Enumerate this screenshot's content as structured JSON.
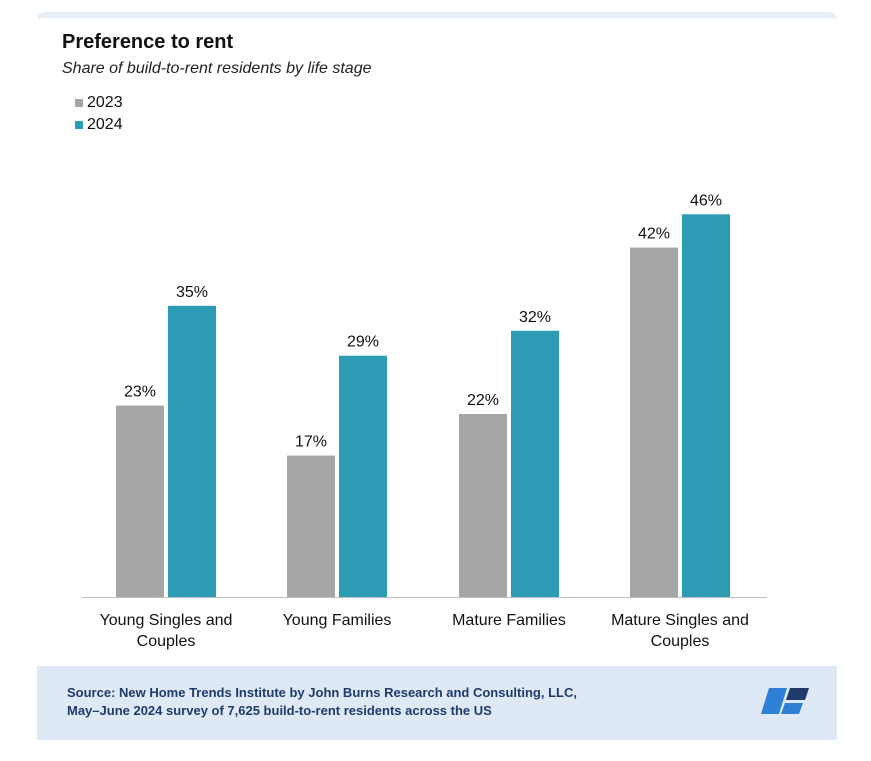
{
  "header": {
    "title": "Preference to rent",
    "subtitle": "Share of build-to-rent residents by life stage"
  },
  "legend": [
    {
      "label": "2023",
      "color": "#a6a6a6"
    },
    {
      "label": "2024",
      "color": "#2e9bb5"
    }
  ],
  "chart_data": {
    "type": "bar",
    "categories": [
      [
        "Young Singles and",
        "Couples"
      ],
      [
        "Young Families"
      ],
      [
        "Mature Families"
      ],
      [
        "Mature Singles and",
        "Couples"
      ]
    ],
    "series": [
      {
        "name": "2023",
        "values": [
          23,
          17,
          22,
          42
        ],
        "labels": [
          "23%",
          "17%",
          "22%",
          "42%"
        ],
        "color": "#a6a6a6"
      },
      {
        "name": "2024",
        "values": [
          35,
          29,
          32,
          46
        ],
        "labels": [
          "35%",
          "29%",
          "32%",
          "46%"
        ],
        "color": "#2e9bb5"
      }
    ],
    "title": "Preference to rent",
    "subtitle": "Share of build-to-rent residents by life stage",
    "xlabel": "",
    "ylabel": "",
    "ylim": [
      0,
      50
    ],
    "grid": false,
    "legend_position": "top-left"
  },
  "footer": {
    "source_line1": "Source: New Home Trends Institute by John Burns Research and Consulting, LLC,",
    "source_line2": "May–June 2024 survey of 7,625 build-to-rent residents across the US",
    "logo_icon": "john-burns-logo-icon",
    "logo_colors": [
      "#2e7fd6",
      "#1f3b6e"
    ]
  }
}
